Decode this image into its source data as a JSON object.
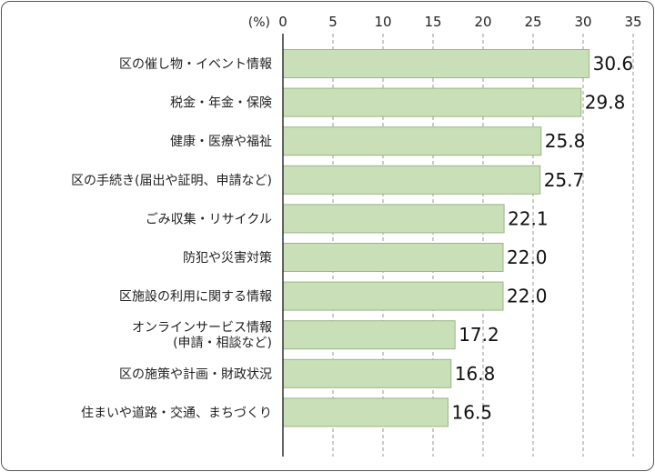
{
  "chart_data": {
    "type": "bar",
    "orientation": "horizontal",
    "unit_label": "(%)",
    "xlim": [
      0,
      35
    ],
    "ticks": [
      0,
      5,
      10,
      15,
      20,
      25,
      30,
      35
    ],
    "grid": "vertical-dashed",
    "bar_color": "#c9dfb8",
    "bar_edge_color": "#9bb687",
    "categories": [
      [
        "区の催し物・イベント情報"
      ],
      [
        "税金・年金・保険"
      ],
      [
        "健康・医療や福祉"
      ],
      [
        "区の手続き(届出や証明、申請など)"
      ],
      [
        "ごみ収集・リサイクル"
      ],
      [
        "防犯や災害対策"
      ],
      [
        "区施設の利用に関する情報"
      ],
      [
        "オンラインサービス情報",
        "(申請・相談など)"
      ],
      [
        "区の施策や計画・財政状況"
      ],
      [
        "住まいや道路・交通、まちづくり"
      ]
    ],
    "values": [
      30.6,
      29.8,
      25.8,
      25.7,
      22.1,
      22.0,
      22.0,
      17.2,
      16.8,
      16.5
    ],
    "value_labels": [
      "30.6",
      "29.8",
      "25.8",
      "25.7",
      "22.1",
      "22.0",
      "22.0",
      "17.2",
      "16.8",
      "16.5"
    ]
  }
}
